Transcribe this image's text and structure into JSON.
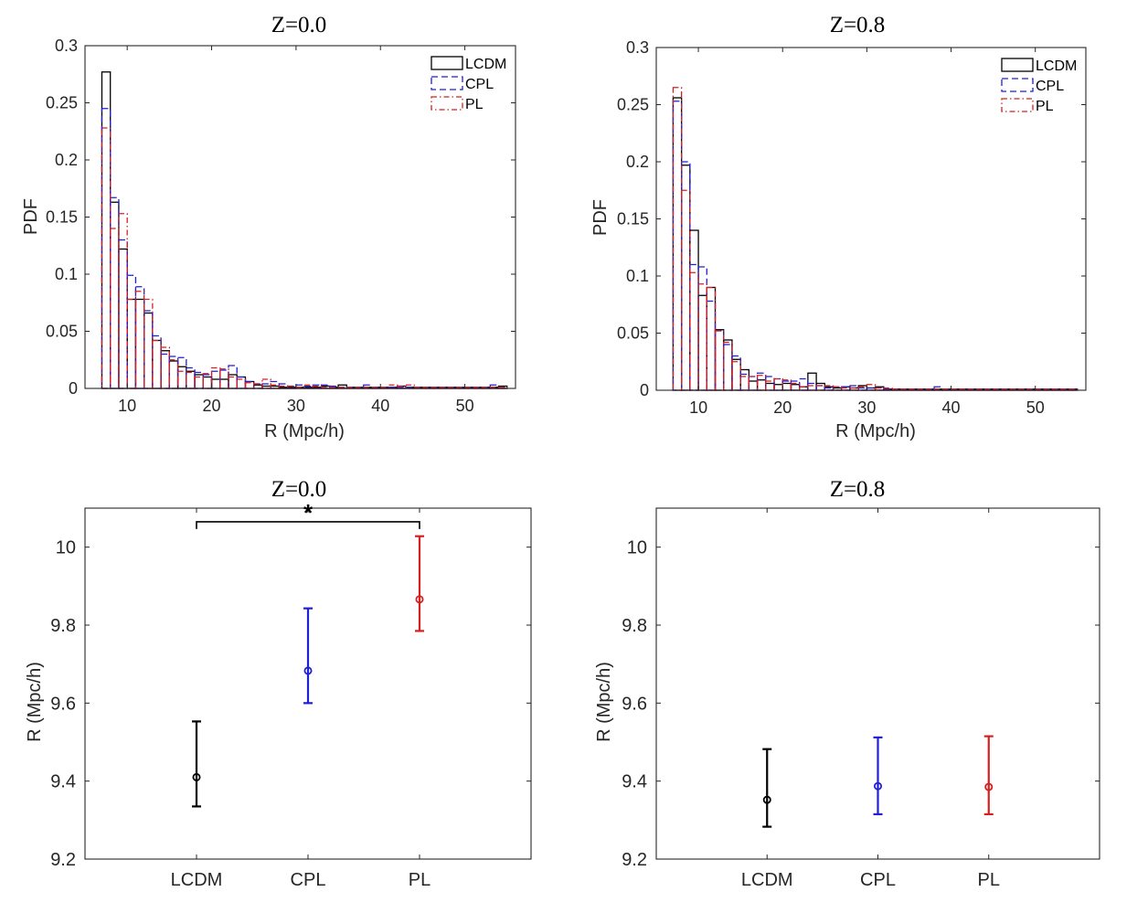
{
  "chart_data": [
    {
      "type": "histogram",
      "title": "Z=0.0",
      "xlabel": "R (Mpc/h)",
      "ylabel": "PDF",
      "xlim": [
        5,
        56
      ],
      "ylim": [
        0,
        0.3
      ],
      "xticks": [
        10,
        20,
        30,
        40,
        50
      ],
      "yticks": [
        0,
        0.05,
        0.1,
        0.15,
        0.2,
        0.25,
        0.3
      ],
      "ytick_labels": [
        "0",
        "0.05",
        "0.1",
        "0.15",
        "0.2",
        "0.25",
        "0.3"
      ],
      "bin_start": 7,
      "bin_width": 1,
      "legend_position": "top-right",
      "series": [
        {
          "name": "LCDM",
          "color": "#000000",
          "dash": "",
          "values": [
            0.277,
            0.163,
            0.122,
            0.078,
            0.078,
            0.066,
            0.042,
            0.033,
            0.024,
            0.019,
            0.015,
            0.012,
            0.01,
            0.008,
            0.008,
            0.012,
            0.01,
            0.006,
            0.003,
            0.002,
            0.002,
            0.001,
            0.001,
            0.001,
            0.001,
            0.001,
            0.002,
            0.001,
            0.003,
            0.001,
            0.001,
            0.001,
            0.001,
            0.001,
            0.001,
            0.002,
            0.001,
            0.001,
            0.001,
            0.001,
            0.001,
            0.001,
            0.001,
            0.001,
            0.001,
            0.001,
            0.001,
            0.002
          ]
        },
        {
          "name": "CPL",
          "color": "#1f1fd6",
          "dash": "7,4",
          "values": [
            0.245,
            0.167,
            0.13,
            0.099,
            0.089,
            0.068,
            0.046,
            0.03,
            0.028,
            0.027,
            0.018,
            0.014,
            0.012,
            0.015,
            0.016,
            0.02,
            0.01,
            0.006,
            0.004,
            0.004,
            0.006,
            0.004,
            0.002,
            0.003,
            0.002,
            0.003,
            0.003,
            0.002,
            0.001,
            0.001,
            0.001,
            0.003,
            0.001,
            0.001,
            0.001,
            0.001,
            0.001,
            0.001,
            0.001,
            0.001,
            0.001,
            0.001,
            0.001,
            0.001,
            0.001,
            0.001,
            0.003,
            0.001
          ]
        },
        {
          "name": "PL",
          "color": "#d42020",
          "dash": "6,3,1.5,3",
          "values": [
            0.228,
            0.14,
            0.153,
            0.078,
            0.085,
            0.078,
            0.042,
            0.036,
            0.025,
            0.015,
            0.014,
            0.01,
            0.013,
            0.018,
            0.017,
            0.01,
            0.008,
            0.005,
            0.004,
            0.008,
            0.003,
            0.002,
            0.002,
            0.001,
            0.003,
            0.002,
            0.001,
            0.001,
            0.001,
            0.001,
            0.001,
            0.001,
            0.001,
            0.001,
            0.003,
            0.002,
            0.003,
            0.001,
            0.001,
            0.001,
            0.001,
            0.001,
            0.001,
            0.001,
            0.001,
            0.001,
            0.001,
            0.001
          ]
        }
      ]
    },
    {
      "type": "histogram",
      "title": "Z=0.8",
      "xlabel": "R (Mpc/h)",
      "ylabel": "PDF",
      "xlim": [
        5,
        56
      ],
      "ylim": [
        0,
        0.3
      ],
      "xticks": [
        10,
        20,
        30,
        40,
        50
      ],
      "yticks": [
        0,
        0.05,
        0.1,
        0.15,
        0.2,
        0.25,
        0.3
      ],
      "ytick_labels": [
        "0",
        "0.05",
        "0.1",
        "0.15",
        "0.2",
        "0.25",
        "0.3"
      ],
      "bin_start": 7,
      "bin_width": 1,
      "legend_position": "top-right",
      "series": [
        {
          "name": "LCDM",
          "color": "#000000",
          "dash": "",
          "values": [
            0.256,
            0.197,
            0.14,
            0.083,
            0.09,
            0.053,
            0.044,
            0.027,
            0.018,
            0.008,
            0.009,
            0.006,
            0.005,
            0.006,
            0.005,
            0.003,
            0.015,
            0.006,
            0.003,
            0.002,
            0.003,
            0.002,
            0.004,
            0.002,
            0.003,
            0.001,
            0.001,
            0.001,
            0.001,
            0.001,
            0.001,
            0.001,
            0.001,
            0.001,
            0.001,
            0.001,
            0.001,
            0.001,
            0.001,
            0.001,
            0.001,
            0.001,
            0.001,
            0.001,
            0.001,
            0.001,
            0.001,
            0.001
          ]
        },
        {
          "name": "CPL",
          "color": "#1f1fd6",
          "dash": "7,4",
          "values": [
            0.253,
            0.2,
            0.11,
            0.108,
            0.078,
            0.052,
            0.04,
            0.03,
            0.014,
            0.012,
            0.015,
            0.012,
            0.01,
            0.008,
            0.008,
            0.01,
            0.006,
            0.004,
            0.002,
            0.003,
            0.003,
            0.004,
            0.002,
            0.002,
            0.002,
            0.001,
            0.001,
            0.001,
            0.001,
            0.001,
            0.001,
            0.003,
            0.001,
            0.001,
            0.001,
            0.001,
            0.001,
            0.001,
            0.001,
            0.001,
            0.001,
            0.001,
            0.001,
            0.001,
            0.001,
            0.001,
            0.001,
            0.001
          ]
        },
        {
          "name": "PL",
          "color": "#d42020",
          "dash": "6,3,1.5,3",
          "values": [
            0.265,
            0.175,
            0.103,
            0.093,
            0.09,
            0.052,
            0.042,
            0.025,
            0.012,
            0.012,
            0.013,
            0.008,
            0.01,
            0.009,
            0.006,
            0.003,
            0.004,
            0.004,
            0.004,
            0.003,
            0.002,
            0.002,
            0.003,
            0.005,
            0.002,
            0.002,
            0.001,
            0.001,
            0.001,
            0.001,
            0.001,
            0.001,
            0.001,
            0.001,
            0.001,
            0.001,
            0.001,
            0.001,
            0.001,
            0.001,
            0.001,
            0.001,
            0.001,
            0.001,
            0.001,
            0.001,
            0.001,
            0.001
          ]
        }
      ]
    },
    {
      "type": "errorbar",
      "title": "Z=0.0",
      "xlabel": "",
      "ylabel": "R (Mpc/h)",
      "categories": [
        "LCDM",
        "CPL",
        "PL"
      ],
      "ylim": [
        9.2,
        10.1
      ],
      "yticks": [
        9.2,
        9.4,
        9.6,
        9.8,
        10
      ],
      "ytick_labels": [
        "9.2",
        "9.4",
        "9.6",
        "9.8",
        "10"
      ],
      "colors": [
        "#000000",
        "#1f1fd6",
        "#d42020"
      ],
      "points": [
        {
          "category": "LCDM",
          "mean": 9.41,
          "lower": 9.335,
          "upper": 9.553
        },
        {
          "category": "CPL",
          "mean": 9.683,
          "lower": 9.6,
          "upper": 9.843
        },
        {
          "category": "PL",
          "mean": 9.866,
          "lower": 9.785,
          "upper": 10.028
        }
      ],
      "significance": {
        "from": "LCDM",
        "to": "PL",
        "label": "*",
        "y": 10.065
      }
    },
    {
      "type": "errorbar",
      "title": "Z=0.8",
      "xlabel": "",
      "ylabel": "R (Mpc/h)",
      "categories": [
        "LCDM",
        "CPL",
        "PL"
      ],
      "ylim": [
        9.2,
        10.1
      ],
      "yticks": [
        9.2,
        9.4,
        9.6,
        9.8,
        10
      ],
      "ytick_labels": [
        "9.2",
        "9.4",
        "9.6",
        "9.8",
        "10"
      ],
      "colors": [
        "#000000",
        "#1f1fd6",
        "#d42020"
      ],
      "points": [
        {
          "category": "LCDM",
          "mean": 9.352,
          "lower": 9.283,
          "upper": 9.482
        },
        {
          "category": "CPL",
          "mean": 9.387,
          "lower": 9.315,
          "upper": 9.512
        },
        {
          "category": "PL",
          "mean": 9.385,
          "lower": 9.315,
          "upper": 9.515
        }
      ]
    }
  ]
}
